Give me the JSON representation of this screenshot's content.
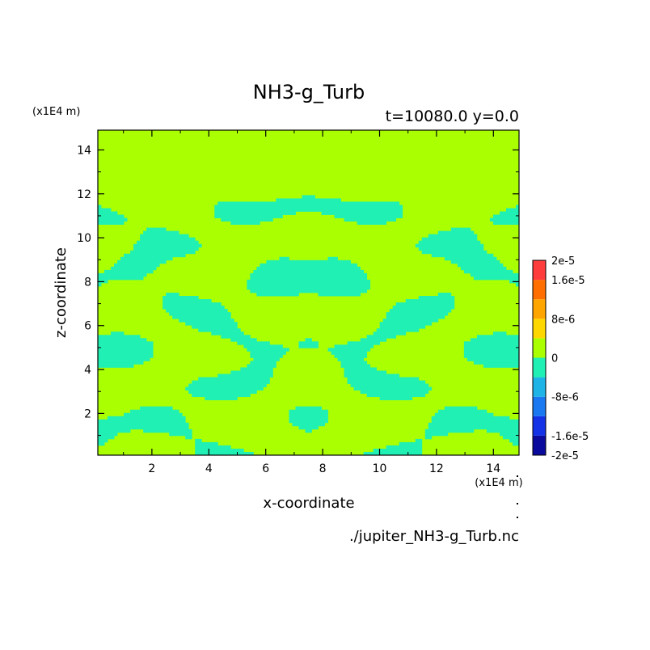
{
  "chart_data": {
    "type": "heatmap",
    "title": "NH3-g_Turb",
    "subtitle": "t=10080.0 y=0.0",
    "xlabel": "x-coordinate",
    "ylabel": "z-coordinate",
    "x_unit": "(x1E4 m)",
    "y_unit": "(x1E4 m)",
    "xlim": [
      0.1,
      14.9
    ],
    "ylim": [
      0.1,
      14.9
    ],
    "x_ticks": [
      2,
      4,
      6,
      8,
      10,
      12,
      14
    ],
    "y_ticks": [
      2,
      4,
      6,
      8,
      10,
      12,
      14
    ],
    "x_tick_labels": [
      "2",
      "4",
      "6",
      "8",
      "10",
      "12",
      "14"
    ],
    "y_tick_labels": [
      "2",
      "4",
      "6",
      "8",
      "10",
      "12",
      "14"
    ],
    "source": "./jupiter_NH3-g_Turb.nc",
    "turbulent_layer_top_z": 12.3,
    "field_description": "Mostly two levels: 0 (yellow-green) and slightly negative (cyan) in a mirror-symmetric turbulent pattern below z≈12; uniform 0 above.",
    "colorbar": {
      "levels": [
        -2e-05,
        -1.6e-05,
        -1.2e-05,
        -8e-06,
        -4e-06,
        0,
        4e-06,
        8e-06,
        1.2e-05,
        1.6e-05,
        2e-05
      ],
      "colors": [
        "#0a0a9c",
        "#1432e6",
        "#1a78f0",
        "#1eb4e6",
        "#21f0b4",
        "#aaff00",
        "#ffd700",
        "#ffa500",
        "#ff6e00",
        "#ff3c3c"
      ],
      "labels": [
        {
          "value": 2e-05,
          "text": "2e-5"
        },
        {
          "value": 1.6e-05,
          "text": "1.6e-5"
        },
        {
          "value": 8e-06,
          "text": "8e-6"
        },
        {
          "value": 0,
          "text": "0"
        },
        {
          "value": -8e-06,
          "text": "-8e-6"
        },
        {
          "value": -1.6e-05,
          "text": "-1.6e-5"
        },
        {
          "value": -2e-05,
          "text": "-2e-5"
        }
      ]
    },
    "colors": {
      "zero": "#aaff00",
      "negative": "#21f0b4"
    }
  }
}
